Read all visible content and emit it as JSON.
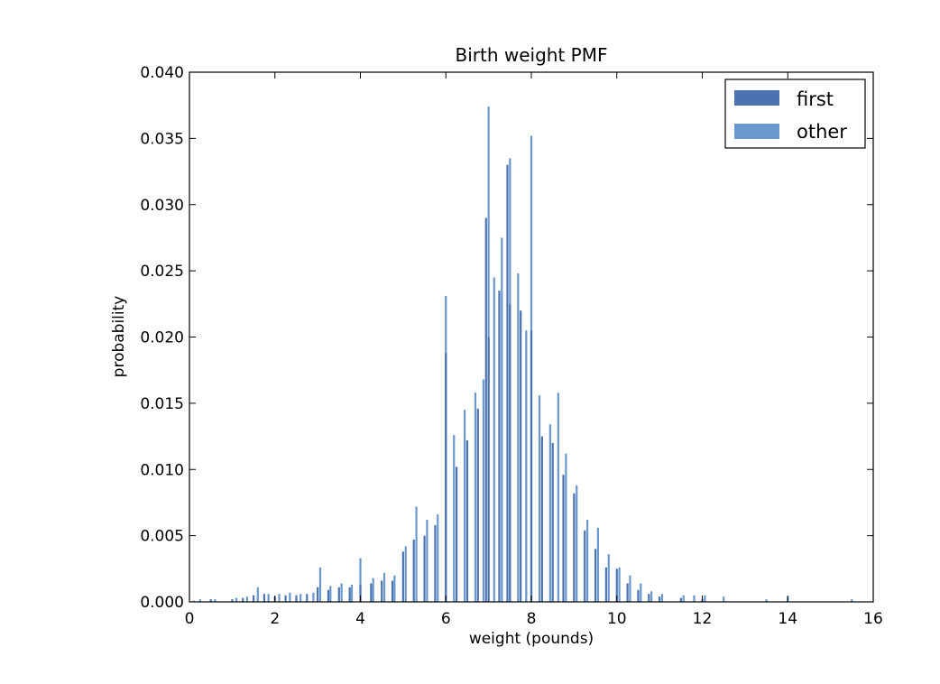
{
  "chart_data": {
    "type": "bar",
    "title": "Birth weight PMF",
    "xlabel": "weight (pounds)",
    "ylabel": "probability",
    "xlim": [
      0,
      16
    ],
    "ylim": [
      0,
      0.04
    ],
    "x_ticks": [
      "0",
      "2",
      "4",
      "6",
      "8",
      "10",
      "12",
      "14",
      "16"
    ],
    "y_ticks": [
      "0.000",
      "0.005",
      "0.010",
      "0.015",
      "0.020",
      "0.025",
      "0.030",
      "0.035",
      "0.040"
    ],
    "grid": false,
    "legend_position": "top-right",
    "series": [
      {
        "name": "first",
        "color": "#4c72b0",
        "points": [
          [
            0.5,
            0.0002
          ],
          [
            1.0,
            0.0002
          ],
          [
            1.25,
            0.0003
          ],
          [
            1.5,
            0.0005
          ],
          [
            1.75,
            0.0006
          ],
          [
            2.0,
            0.0004
          ],
          [
            2.25,
            0.0005
          ],
          [
            2.5,
            0.0005
          ],
          [
            2.75,
            0.0006
          ],
          [
            3.0,
            0.0011
          ],
          [
            3.25,
            0.0009
          ],
          [
            3.5,
            0.0011
          ],
          [
            3.75,
            0.0011
          ],
          [
            4.0,
            0.0013
          ],
          [
            4.25,
            0.0014
          ],
          [
            4.5,
            0.0016
          ],
          [
            4.75,
            0.0016
          ],
          [
            5.0,
            0.0038
          ],
          [
            5.25,
            0.0047
          ],
          [
            5.5,
            0.005
          ],
          [
            5.75,
            0.0058
          ],
          [
            6.0,
            0.0188
          ],
          [
            6.25,
            0.0102
          ],
          [
            6.5,
            0.0122
          ],
          [
            6.75,
            0.0146
          ],
          [
            6.94,
            0.029
          ],
          [
            7.0,
            0.02
          ],
          [
            7.25,
            0.0235
          ],
          [
            7.44,
            0.033
          ],
          [
            7.5,
            0.0225
          ],
          [
            7.75,
            0.022
          ],
          [
            8.0,
            0.0205
          ],
          [
            8.25,
            0.0125
          ],
          [
            8.5,
            0.012
          ],
          [
            8.75,
            0.0096
          ],
          [
            9.0,
            0.0082
          ],
          [
            9.25,
            0.0054
          ],
          [
            9.5,
            0.004
          ],
          [
            9.75,
            0.0026
          ],
          [
            10.0,
            0.0025
          ],
          [
            10.25,
            0.0014
          ],
          [
            10.5,
            0.0009
          ],
          [
            10.75,
            0.0006
          ],
          [
            11.0,
            0.0004
          ],
          [
            11.5,
            0.0003
          ],
          [
            12.0,
            0.0002
          ]
        ]
      },
      {
        "name": "other",
        "color": "#6a98cc",
        "points": [
          [
            0.1,
            0.0001
          ],
          [
            0.25,
            0.0002
          ],
          [
            0.6,
            0.0002
          ],
          [
            1.1,
            0.0003
          ],
          [
            1.35,
            0.0004
          ],
          [
            1.6,
            0.0011
          ],
          [
            1.85,
            0.0006
          ],
          [
            2.1,
            0.0006
          ],
          [
            2.35,
            0.0007
          ],
          [
            2.6,
            0.0006
          ],
          [
            2.9,
            0.0007
          ],
          [
            3.06,
            0.0026
          ],
          [
            3.3,
            0.0012
          ],
          [
            3.56,
            0.0014
          ],
          [
            3.8,
            0.0013
          ],
          [
            4.0,
            0.0033
          ],
          [
            4.3,
            0.0018
          ],
          [
            4.56,
            0.0022
          ],
          [
            4.8,
            0.002
          ],
          [
            5.06,
            0.0042
          ],
          [
            5.31,
            0.0072
          ],
          [
            5.56,
            0.0062
          ],
          [
            5.81,
            0.0066
          ],
          [
            6.0,
            0.0231
          ],
          [
            6.19,
            0.0126
          ],
          [
            6.44,
            0.0145
          ],
          [
            6.69,
            0.0158
          ],
          [
            6.88,
            0.0168
          ],
          [
            7.0,
            0.0374
          ],
          [
            7.13,
            0.0245
          ],
          [
            7.31,
            0.0275
          ],
          [
            7.5,
            0.0335
          ],
          [
            7.69,
            0.0248
          ],
          [
            7.88,
            0.0205
          ],
          [
            8.0,
            0.0352
          ],
          [
            8.19,
            0.0156
          ],
          [
            8.44,
            0.0134
          ],
          [
            8.63,
            0.0158
          ],
          [
            8.81,
            0.0112
          ],
          [
            9.06,
            0.0088
          ],
          [
            9.31,
            0.0062
          ],
          [
            9.56,
            0.0056
          ],
          [
            9.81,
            0.0036
          ],
          [
            10.06,
            0.0026
          ],
          [
            10.31,
            0.002
          ],
          [
            10.56,
            0.0014
          ],
          [
            10.81,
            0.0008
          ],
          [
            11.06,
            0.0006
          ],
          [
            11.56,
            0.0005
          ],
          [
            11.81,
            0.0005
          ],
          [
            12.06,
            0.0005
          ],
          [
            12.5,
            0.0004
          ],
          [
            13.5,
            0.0002
          ],
          [
            14.0,
            0.0004
          ],
          [
            15.5,
            0.0002
          ]
        ]
      }
    ]
  }
}
